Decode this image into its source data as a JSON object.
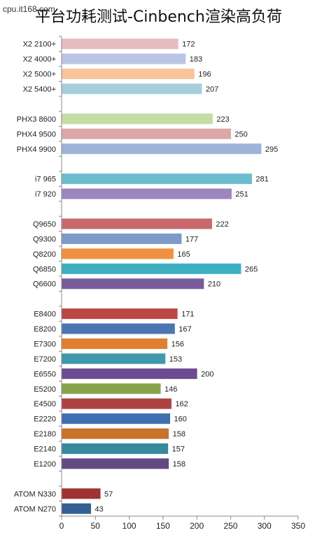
{
  "watermark": "cpu.it168.com",
  "chart_data": {
    "type": "bar",
    "orientation": "horizontal",
    "title": "平台功耗测试-Cinbench渲染高负荷",
    "xlabel": "",
    "ylabel": "",
    "xlim": [
      0,
      350
    ],
    "xticks": [
      0,
      50,
      100,
      150,
      200,
      250,
      300,
      350
    ],
    "grid": false,
    "groups": [
      [
        {
          "label": "X2 2100+",
          "value": 172,
          "color": "#e6bcc0"
        },
        {
          "label": "X2 4000+",
          "value": 183,
          "color": "#b9c6e3"
        },
        {
          "label": "X2 5000+",
          "value": 196,
          "color": "#f9c49c"
        },
        {
          "label": "X2 5400+",
          "value": 207,
          "color": "#a5cfdd"
        }
      ],
      [
        {
          "label": "PHX3 8600",
          "value": 223,
          "color": "#c4dca4"
        },
        {
          "label": "PHX4 9500",
          "value": 250,
          "color": "#dba8a6"
        },
        {
          "label": "PHX4 9900",
          "value": 295,
          "color": "#9eb3d8"
        }
      ],
      [
        {
          "label": "i7 965",
          "value": 281,
          "color": "#6bbcce"
        },
        {
          "label": "i7 920",
          "value": 251,
          "color": "#9b87bb"
        }
      ],
      [
        {
          "label": "Q9650",
          "value": 222,
          "color": "#c86a6c"
        },
        {
          "label": "Q9300",
          "value": 177,
          "color": "#7d9ac8"
        },
        {
          "label": "Q8200",
          "value": 165,
          "color": "#ef9140"
        },
        {
          "label": "Q6850",
          "value": 265,
          "color": "#3eaec1"
        },
        {
          "label": "Q6600",
          "value": 210,
          "color": "#7a5b9a"
        }
      ],
      [
        {
          "label": "E8400",
          "value": 171,
          "color": "#bd4746"
        },
        {
          "label": "E8200",
          "value": 167,
          "color": "#4a76b2"
        },
        {
          "label": "E7300",
          "value": 156,
          "color": "#e07f30"
        },
        {
          "label": "E7200",
          "value": 153,
          "color": "#3f98ac"
        },
        {
          "label": "E6550",
          "value": 200,
          "color": "#6c4b91"
        },
        {
          "label": "E5200",
          "value": 146,
          "color": "#87a44d"
        },
        {
          "label": "E4500",
          "value": 162,
          "color": "#b04141"
        },
        {
          "label": "E2220",
          "value": 160,
          "color": "#3f6fae"
        },
        {
          "label": "E2180",
          "value": 158,
          "color": "#c9722a"
        },
        {
          "label": "E2140",
          "value": 157,
          "color": "#358a9d"
        },
        {
          "label": "E1200",
          "value": 158,
          "color": "#624980"
        }
      ],
      [
        {
          "label": "ATOM N330",
          "value": 57,
          "color": "#9e3432"
        },
        {
          "label": "ATOM N270",
          "value": 43,
          "color": "#355f94"
        }
      ]
    ]
  }
}
